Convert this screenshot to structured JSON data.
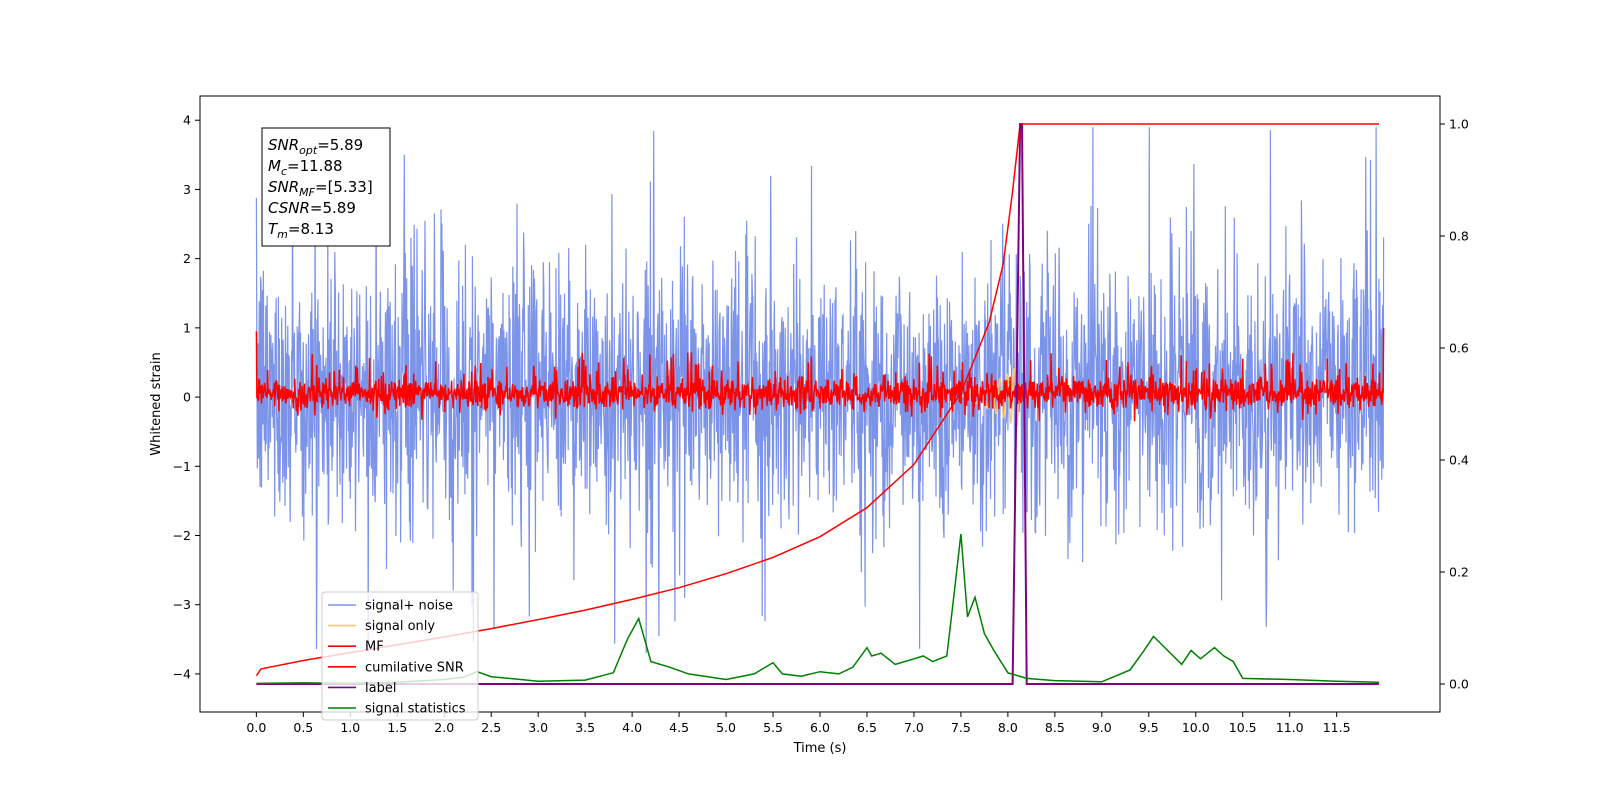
{
  "chart_data": {
    "type": "line",
    "xlabel": "Time (s)",
    "ylabel": "Whitened strain",
    "xlim": [
      -0.6,
      12.6
    ],
    "ylim": [
      -4.55,
      4.35
    ],
    "y2lim": [
      -0.05,
      1.05
    ],
    "xticks": [
      0.0,
      0.5,
      1.0,
      1.5,
      2.0,
      2.5,
      3.0,
      3.5,
      4.0,
      4.5,
      5.0,
      5.5,
      6.0,
      6.5,
      7.0,
      7.5,
      8.0,
      8.5,
      9.0,
      9.5,
      10.0,
      10.5,
      11.0,
      11.5
    ],
    "xtick_labels": [
      "0.0",
      "0.5",
      "1.0",
      "1.5",
      "2.0",
      "2.5",
      "3.0",
      "3.5",
      "4.0",
      "4.5",
      "5.0",
      "5.5",
      "6.0",
      "6.5",
      "7.0",
      "7.5",
      "8.0",
      "8.5",
      "9.0",
      "9.5",
      "10.0",
      "10.5",
      "11.0",
      "11.5"
    ],
    "yticks": [
      -4,
      -3,
      -2,
      -1,
      0,
      1,
      2,
      3,
      4
    ],
    "ytick_labels": [
      "−4",
      "−3",
      "−2",
      "−1",
      "0",
      "1",
      "2",
      "3",
      "4"
    ],
    "y2ticks": [
      0.0,
      0.2,
      0.4,
      0.6,
      0.8,
      1.0
    ],
    "y2tick_labels": [
      "0.0",
      "0.2",
      "0.4",
      "0.6",
      "0.8",
      "1.0"
    ],
    "grid": false,
    "legend_position": "lower-left",
    "annotation": {
      "lines": [
        {
          "var": "SNR",
          "sub": "opt",
          "value": "=5.89"
        },
        {
          "var": "M",
          "sub": "c",
          "value": "=11.88"
        },
        {
          "var": "SNR",
          "sub": "MF",
          "value": "=[5.33]"
        },
        {
          "var": "CSNR",
          "sub": "",
          "value": "=5.89"
        },
        {
          "var": "T",
          "sub": "m",
          "value": "=8.13"
        }
      ]
    },
    "series": [
      {
        "name": "signal+ noise",
        "axis": "left",
        "color": "#7b93e8",
        "description_style": "noise",
        "envelope": {
          "x": [
            0,
            12
          ],
          "typical_low": -1.9,
          "typical_high": 2.1,
          "extreme_low": -3.7,
          "extreme_high": 3.9
        }
      },
      {
        "name": "signal only",
        "axis": "left",
        "color": "#f4c77a",
        "x": [
          7.5,
          7.7,
          7.8,
          7.9,
          8.0,
          8.05,
          8.1,
          8.13
        ],
        "amplitude": [
          0.05,
          0.1,
          0.18,
          0.25,
          0.33,
          0.4,
          0.42,
          0.0
        ]
      },
      {
        "name": "MF",
        "axis": "left",
        "color": "#ff0000",
        "description_style": "noise",
        "envelope": {
          "x": [
            0,
            12
          ],
          "typical_low": -0.25,
          "typical_high": 0.4,
          "extreme_low": -0.35,
          "extreme_high": 0.7
        }
      },
      {
        "name": "cumilative SNR",
        "axis": "right",
        "color": "#ff0000",
        "x": [
          0.0,
          0.05,
          0.5,
          1.0,
          1.5,
          2.0,
          2.5,
          3.0,
          3.5,
          4.0,
          4.5,
          5.0,
          5.5,
          6.0,
          6.5,
          7.0,
          7.5,
          7.8,
          7.95,
          8.05,
          8.13
        ],
        "values": [
          0.015,
          0.027,
          0.042,
          0.056,
          0.07,
          0.084,
          0.099,
          0.115,
          0.132,
          0.151,
          0.172,
          0.197,
          0.226,
          0.263,
          0.315,
          0.392,
          0.52,
          0.645,
          0.75,
          0.88,
          1.0
        ]
      },
      {
        "name": "label",
        "axis": "right",
        "color": "#800080",
        "x": [
          0.0,
          8.05,
          8.13,
          8.15,
          8.2,
          11.95
        ],
        "values": [
          0.0,
          0.0,
          1.0,
          1.0,
          0.0,
          0.0
        ]
      },
      {
        "name": "signal statistics",
        "axis": "right",
        "color": "#008000",
        "x": [
          0.0,
          0.5,
          1.0,
          1.5,
          2.0,
          2.2,
          2.35,
          2.5,
          3.0,
          3.5,
          3.8,
          3.95,
          4.07,
          4.2,
          4.4,
          4.6,
          5.0,
          5.3,
          5.5,
          5.6,
          5.8,
          6.0,
          6.2,
          6.35,
          6.5,
          6.55,
          6.65,
          6.8,
          7.0,
          7.1,
          7.2,
          7.35,
          7.42,
          7.5,
          7.57,
          7.65,
          7.75,
          7.85,
          8.0,
          8.2,
          8.5,
          9.0,
          9.3,
          9.45,
          9.55,
          9.7,
          9.85,
          9.95,
          10.05,
          10.2,
          10.3,
          10.4,
          10.5,
          11.0,
          11.5,
          11.95
        ],
        "values": [
          0.001,
          0.002,
          0.001,
          0.003,
          0.008,
          0.012,
          0.022,
          0.013,
          0.005,
          0.007,
          0.02,
          0.08,
          0.117,
          0.04,
          0.03,
          0.018,
          0.008,
          0.018,
          0.038,
          0.018,
          0.014,
          0.022,
          0.018,
          0.03,
          0.065,
          0.05,
          0.055,
          0.035,
          0.045,
          0.05,
          0.04,
          0.05,
          0.15,
          0.268,
          0.12,
          0.155,
          0.09,
          0.06,
          0.02,
          0.01,
          0.006,
          0.004,
          0.025,
          0.06,
          0.085,
          0.06,
          0.035,
          0.06,
          0.045,
          0.065,
          0.05,
          0.04,
          0.01,
          0.008,
          0.005,
          0.003
        ]
      }
    ]
  }
}
